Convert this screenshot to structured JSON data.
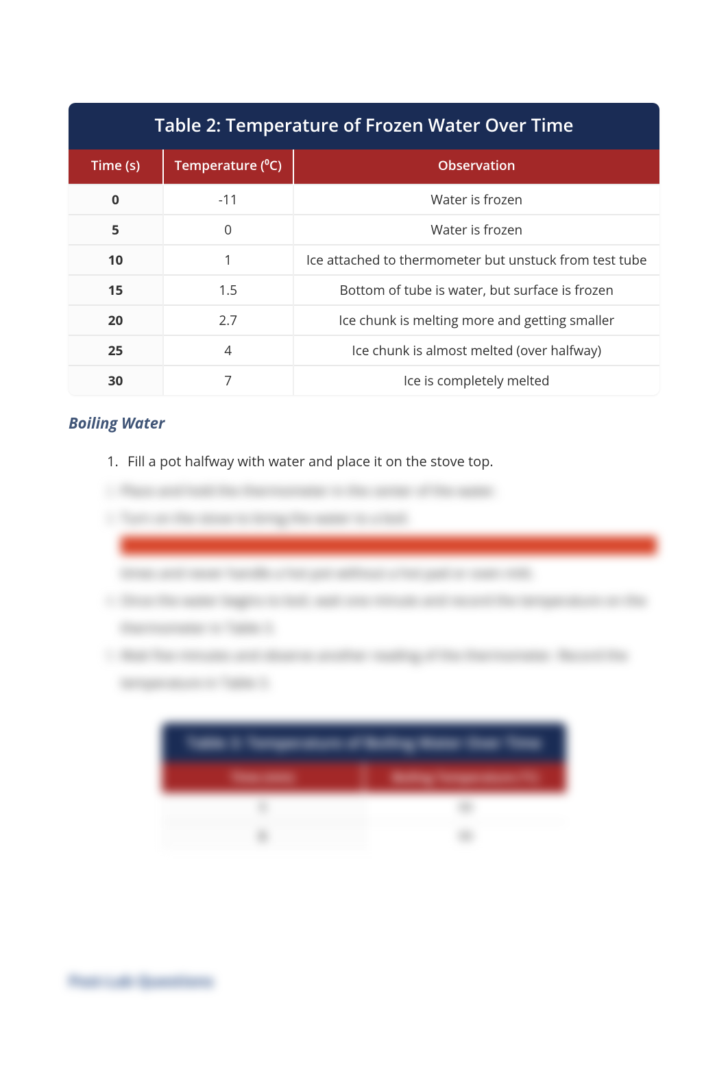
{
  "colors": {
    "table_header_bg": "#1a2c55",
    "column_header_bg": "#a32828",
    "text": "#2e2e2e",
    "subheading": "#405577",
    "row_border": "#e9e9e9"
  },
  "table2": {
    "title": "Table 2: Temperature of Frozen Water Over Time",
    "columns": [
      "Time (s)",
      "Temperature (⁰C)",
      "Observation"
    ],
    "col_widths_pct": [
      16,
      22,
      62
    ],
    "rows": [
      {
        "time": "0",
        "temp": "-11",
        "obs": "Water is frozen"
      },
      {
        "time": "5",
        "temp": "0",
        "obs": "Water is frozen"
      },
      {
        "time": "10",
        "temp": "1",
        "obs": "Ice attached to thermometer but unstuck from test tube"
      },
      {
        "time": "15",
        "temp": "1.5",
        "obs": "Bottom of tube is water, but surface is frozen"
      },
      {
        "time": "20",
        "temp": "2.7",
        "obs": "Ice chunk is melting more and getting smaller"
      },
      {
        "time": "25",
        "temp": "4",
        "obs": "Ice chunk is almost melted (over halfway)"
      },
      {
        "time": "30",
        "temp": "7",
        "obs": "Ice is completely melted"
      }
    ]
  },
  "section": {
    "subheading": "Boiling Water",
    "visible_steps": [
      "Fill a pot halfway with water and place it on the stove top."
    ],
    "blurred_placeholder_lines": [
      {
        "bullet": "2.",
        "text": "Place and hold the thermometer in the center of the water."
      },
      {
        "bullet": "3.",
        "text": "Turn on the stove to bring the water to a boil."
      },
      {
        "bullet": "",
        "text": "CAUTION   Be careful when handling boiling water. Monitor the apparatus at all",
        "warn": true
      },
      {
        "bullet": "",
        "text": "times and never handle a hot pot without a hot pad or oven mitt."
      },
      {
        "bullet": "4.",
        "text": "Once the water begins to boil, wait one minute and record the temperature on the"
      },
      {
        "bullet": "",
        "text": "thermometer in Table 3."
      },
      {
        "bullet": "5.",
        "text": "Wait five minutes and observe another reading of the thermometer. Record the"
      },
      {
        "bullet": "",
        "text": "temperature in Table 3."
      }
    ]
  },
  "table3_placeholder": {
    "title": "Table 3: Temperature of Boiling Water Over Time",
    "columns": [
      "Time (min)",
      "Boiling Temperature (°C)"
    ],
    "rows": [
      [
        "1",
        "99"
      ],
      [
        "5",
        "99"
      ]
    ]
  },
  "footer_blur_text": "Post-Lab Questions"
}
